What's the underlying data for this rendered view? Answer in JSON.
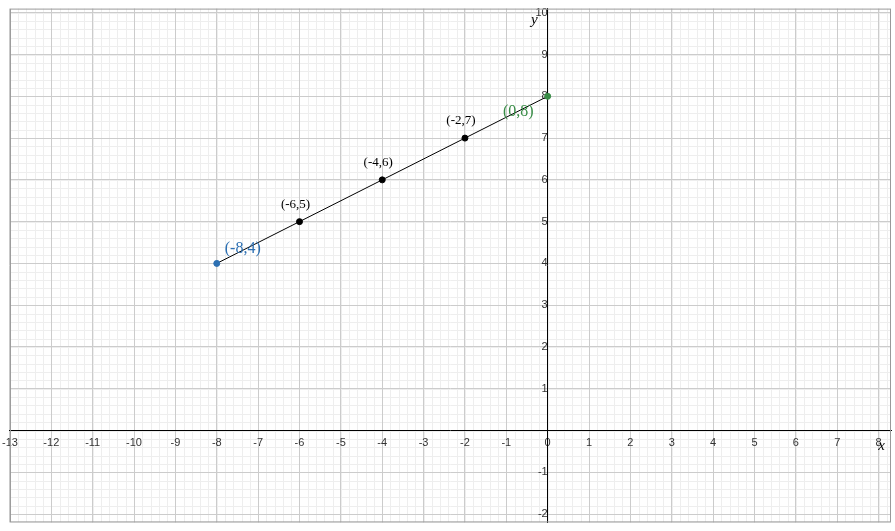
{
  "chart_data": {
    "type": "line",
    "x_label": "x",
    "y_label": "y",
    "x": [
      -8,
      -6,
      -4,
      -2,
      0
    ],
    "values": [
      4,
      5,
      6,
      7,
      8
    ],
    "color": "#000000",
    "colors": [
      "#2d70b3",
      "#000000",
      "#000000",
      "#000000",
      "#388c46"
    ],
    "marker": "circle",
    "line_style": "solid",
    "grid": true,
    "xlim": [
      -13,
      8.3
    ],
    "xticks": [
      -13,
      -12,
      -11,
      -10,
      -9,
      -8,
      -7,
      -6,
      -5,
      -4,
      -3,
      -2,
      -1,
      0,
      1,
      2,
      3,
      4,
      5,
      6,
      7,
      8
    ],
    "ylim": [
      -2.2,
      10.1
    ],
    "yticks": [
      -2,
      -1,
      1,
      2,
      3,
      4,
      5,
      6,
      7,
      8,
      9,
      10
    ],
    "annotations": [
      {
        "text": "(-8,4)",
        "x": -8,
        "y": 4,
        "color": "#2d70b3"
      },
      {
        "text": "(-6,5)",
        "x": -6,
        "y": 5,
        "color": "#000000"
      },
      {
        "text": "(-4,6)",
        "x": -4,
        "y": 6,
        "color": "#000000"
      },
      {
        "text": "(-2,7)",
        "x": -2,
        "y": 7,
        "color": "#000000"
      },
      {
        "text": "(0,8)",
        "x": 0,
        "y": 8,
        "color": "#388c46"
      }
    ]
  }
}
